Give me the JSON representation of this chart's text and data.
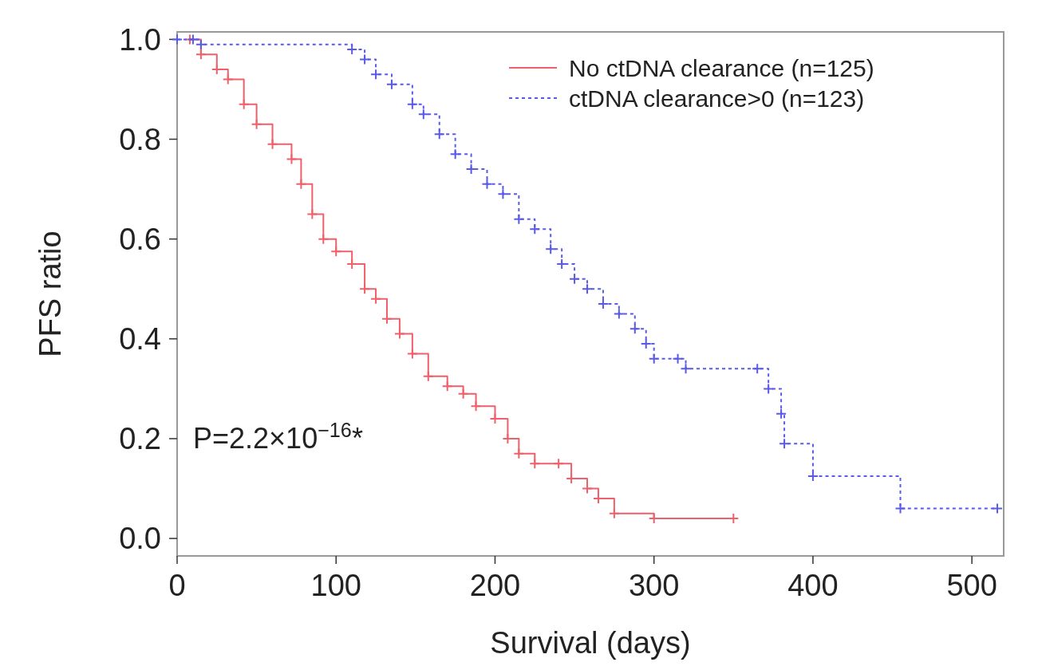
{
  "chart_data": {
    "type": "step",
    "xlabel": "Survival (days)",
    "ylabel": "PFS ratio",
    "xlim": [
      0,
      520
    ],
    "ylim": [
      -0.035,
      1.015
    ],
    "xticks": [
      0,
      100,
      200,
      300,
      400,
      500
    ],
    "yticks": [
      {
        "value": 0,
        "label": "0.0"
      },
      0.2,
      0.4,
      0.6,
      0.8,
      {
        "value": 1,
        "label": "1.0"
      }
    ],
    "grid": false,
    "legend": "top right",
    "marker": "cross",
    "annotations": [
      "P=2.2×10$^{−16}$*"
    ],
    "series": [
      {
        "name": "No ctDNA clearance (n=125)",
        "color": "#f0606a",
        "line_style": "solid",
        "x": [
          8,
          15,
          25,
          32,
          42,
          50,
          60,
          72,
          78,
          85,
          92,
          100,
          110,
          118,
          125,
          132,
          140,
          148,
          158,
          170,
          180,
          188,
          200,
          208,
          215,
          225,
          240,
          248,
          258,
          265,
          275,
          300,
          350
        ],
        "values": [
          1.0,
          0.97,
          0.94,
          0.92,
          0.87,
          0.83,
          0.79,
          0.76,
          0.71,
          0.65,
          0.6,
          0.575,
          0.55,
          0.5,
          0.48,
          0.44,
          0.41,
          0.37,
          0.325,
          0.305,
          0.29,
          0.265,
          0.24,
          0.2,
          0.17,
          0.15,
          0.15,
          0.12,
          0.1,
          0.08,
          0.05,
          0.04,
          0.04
        ]
      },
      {
        "name": "ctDNA clearance>0 (n=123)",
        "color": "#5a5ae8",
        "line_style": "dotted",
        "x": [
          0,
          10,
          15,
          110,
          118,
          125,
          135,
          148,
          155,
          165,
          175,
          185,
          195,
          205,
          215,
          225,
          235,
          242,
          250,
          258,
          268,
          278,
          288,
          295,
          300,
          315,
          320,
          365,
          372,
          380,
          382,
          400,
          455,
          516
        ],
        "values": [
          1.0,
          1.0,
          0.99,
          0.98,
          0.96,
          0.93,
          0.91,
          0.87,
          0.85,
          0.81,
          0.77,
          0.74,
          0.71,
          0.69,
          0.64,
          0.62,
          0.58,
          0.55,
          0.52,
          0.5,
          0.47,
          0.45,
          0.42,
          0.39,
          0.36,
          0.36,
          0.34,
          0.34,
          0.3,
          0.25,
          0.19,
          0.125,
          0.06,
          0.06
        ]
      }
    ]
  }
}
